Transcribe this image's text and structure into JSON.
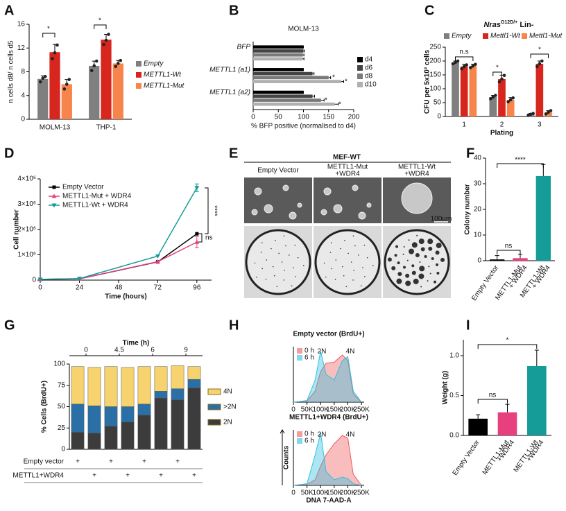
{
  "panel_letters": [
    "A",
    "B",
    "C",
    "D",
    "E",
    "F",
    "G",
    "H",
    "I"
  ],
  "image_panel": {
    "title": "MEF-WT",
    "columns": [
      [
        "Empty Vector"
      ],
      [
        "METTL1-Mut",
        "+WDR4"
      ],
      [
        "METTL1-Wt",
        "+WDR4"
      ]
    ],
    "scale_bar": "100µm"
  },
  "chart_data": [
    {
      "type": "bar",
      "categories": [
        "MOLM-13",
        "THP-1"
      ],
      "ylabel": "n cells d8/ n cells d5",
      "ylim": [
        0,
        16
      ],
      "yticks": [
        0,
        4,
        8,
        12,
        16
      ],
      "legend": "right",
      "series": [
        {
          "name": "Empty",
          "color": "#7f7f7f",
          "values": [
            6.8,
            9.0
          ],
          "errors": [
            0.5,
            0.8
          ],
          "points": [
            [
              6.3,
              6.9,
              7.2
            ],
            [
              8.2,
              9.0,
              9.8
            ]
          ]
        },
        {
          "name": "METTL1-Wt",
          "color": "#d7261e",
          "values": [
            11.3,
            13.4
          ],
          "errors": [
            1.3,
            0.9
          ],
          "points": [
            [
              10.2,
              11.2,
              12.5
            ],
            [
              12.6,
              13.3,
              14.3
            ]
          ]
        },
        {
          "name": "METTL1-Mut",
          "color": "#f7844a",
          "values": [
            5.9,
            9.4
          ],
          "errors": [
            0.8,
            0.5
          ],
          "points": [
            [
              5.1,
              5.9,
              6.7
            ],
            [
              8.9,
              9.4,
              9.9
            ]
          ]
        }
      ],
      "annotations": [
        "*",
        "*"
      ]
    },
    {
      "type": "hbar",
      "title": "MOLM-13",
      "categories": [
        "BFP",
        "METTL1 (a1)",
        "METTL1 (a2)"
      ],
      "xlabel": "% BFP positive (normalised to d4)",
      "xlim": [
        0,
        200
      ],
      "xticks": [
        0,
        50,
        100,
        150,
        200
      ],
      "legend": "right",
      "series": [
        {
          "name": "d4",
          "color": "#000000",
          "values": [
            100,
            100,
            100
          ],
          "errors": [
            0,
            0,
            0
          ]
        },
        {
          "name": "d6",
          "color": "#444444",
          "values": [
            100,
            118,
            118
          ],
          "errors": [
            2,
            3,
            4
          ]
        },
        {
          "name": "d8",
          "color": "#7a7a7a",
          "values": [
            99,
            150,
            135
          ],
          "errors": [
            2,
            4,
            6
          ]
        },
        {
          "name": "d10",
          "color": "#b0b0b0",
          "values": [
            98,
            175,
            162
          ],
          "errors": [
            3,
            5,
            7
          ]
        }
      ],
      "annotations": [
        "*",
        "*",
        "*",
        "*"
      ],
      "annotation_color": "#e0322a"
    },
    {
      "type": "bar",
      "title_parts": [
        "Nras",
        "G12D/+",
        " Lin-"
      ],
      "categories": [
        "1",
        "2",
        "3"
      ],
      "xlabel": "Plating",
      "ylabel": "CFU per 5x10³ cells",
      "ylim": [
        0,
        250
      ],
      "yticks": [
        0,
        50,
        100,
        150,
        200,
        250
      ],
      "legend": "top",
      "series": [
        {
          "name": "Empty",
          "color": "#7f7f7f",
          "values": [
            195,
            70,
            8
          ],
          "errors": [
            5,
            6,
            3
          ],
          "points": [
            [
              190,
              195,
              200
            ],
            [
              64,
              70,
              76
            ],
            [
              5,
              8,
              11
            ]
          ]
        },
        {
          "name": "Mettl1-Wt",
          "color": "#d7261e",
          "values": [
            180,
            135,
            190
          ],
          "errors": [
            8,
            14,
            10
          ],
          "points": [
            [
              172,
              180,
              186
            ],
            [
              125,
              135,
              148
            ],
            [
              180,
              190,
              200
            ]
          ]
        },
        {
          "name": "Mettl1-Mut",
          "color": "#f7844a",
          "values": [
            182,
            60,
            15
          ],
          "errors": [
            6,
            8,
            6
          ],
          "points": [
            [
              176,
              182,
              188
            ],
            [
              53,
              60,
              67
            ],
            [
              9,
              15,
              21
            ]
          ]
        }
      ],
      "annotations": [
        "n.s",
        "*",
        "*"
      ]
    },
    {
      "type": "line",
      "x": [
        0,
        24,
        72,
        96
      ],
      "xlabel": "Time (hours)",
      "ylabel": "Cell number",
      "xlim": [
        0,
        105
      ],
      "xticks": [
        0,
        24,
        48,
        72,
        96
      ],
      "ylim": [
        0,
        4000000
      ],
      "yticks": [
        0,
        {
          "value": 1000000,
          "label": "1×10⁶"
        },
        {
          "value": 2000000,
          "label": "2×10⁶"
        },
        {
          "value": 3000000,
          "label": "3×10⁶"
        },
        {
          "value": 4000000,
          "label": "4×10⁶"
        }
      ],
      "legend": "top-left",
      "series": [
        {
          "name": "Empty Vector",
          "color": "#000000",
          "marker": "square",
          "values": [
            30000,
            50000,
            720000,
            1830000
          ]
        },
        {
          "name": "METTL1-Mut + WDR4",
          "color": "#e8407f",
          "marker": "triangle",
          "values": [
            30000,
            50000,
            730000,
            1500000
          ],
          "errors": [
            null,
            null,
            null,
            220000
          ]
        },
        {
          "name": "METTL1-Wt + WDR4",
          "color": "#169c98",
          "marker": "triangle-down",
          "values": [
            30000,
            60000,
            950000,
            3650000
          ],
          "errors": [
            null,
            null,
            null,
            150000
          ]
        }
      ],
      "annotations": [
        "****",
        "ns"
      ]
    },
    {
      "type": "bar",
      "categories": [
        [
          "Empty Vector"
        ],
        [
          "METTL1-Mut",
          "+ WDR4"
        ],
        [
          "METTL1-Wt",
          "+ WDR4"
        ]
      ],
      "ylabel": "Colony number",
      "ylim": [
        0,
        40
      ],
      "yticks": [
        0,
        10,
        20,
        30,
        40
      ],
      "values": [
        0.5,
        1.0,
        33
      ],
      "errors": [
        1.5,
        1.5,
        4.5
      ],
      "colors": [
        "#000000",
        "#e8407f",
        "#169c98"
      ],
      "annotations": [
        "****",
        "ns"
      ]
    },
    {
      "type": "stacked",
      "time_label": "Time (h)",
      "time_ticks": [
        "0",
        "4.5",
        "6",
        "9"
      ],
      "ylabel": "% Cells (BrdU+)",
      "ylim": [
        0,
        100
      ],
      "yticks": [
        0,
        25,
        50,
        75,
        100
      ],
      "legend": "right",
      "series": [
        {
          "name": "2N",
          "color": "#3c3c3c",
          "values": [
            20,
            19,
            27,
            32,
            40,
            60,
            58,
            72
          ]
        },
        {
          "name": ">2N",
          "color": "#2a6fa6",
          "values": [
            33,
            32,
            23,
            18,
            13,
            8,
            13,
            10
          ]
        },
        {
          "name": "4N",
          "color": "#f6d36e",
          "values": [
            44,
            45,
            47,
            46,
            44,
            29,
            27,
            15
          ]
        }
      ],
      "rows": [
        {
          "label": "Empty vector",
          "marks": [
            "+",
            null,
            "+",
            null,
            "+",
            null,
            "+",
            null
          ]
        },
        {
          "label": "METTL1+WDR4",
          "marks": [
            null,
            "+",
            null,
            "+",
            null,
            "+",
            null,
            "+"
          ]
        }
      ]
    },
    {
      "type": "area",
      "title": "Empty vector (BrdU+)",
      "x": [
        0,
        50000,
        80000,
        100000,
        120000,
        150000,
        180000,
        200000,
        220000,
        250000
      ],
      "xlim": [
        0,
        260000
      ],
      "ylim": [
        0,
        100
      ],
      "xticks": [
        0,
        {
          "value": 50000,
          "label": "50K"
        },
        {
          "value": 100000,
          "label": "100K"
        },
        {
          "value": 150000,
          "label": "150K"
        },
        {
          "value": 200000,
          "label": "200K"
        },
        {
          "value": 250000,
          "label": "250K"
        }
      ],
      "legend": "top-left",
      "series": [
        {
          "name": "0 h",
          "color": "#f05a5a",
          "values": [
            0,
            2,
            20,
            55,
            70,
            72,
            85,
            75,
            15,
            0
          ]
        },
        {
          "name": "6 h",
          "color": "#2fc0e0",
          "values": [
            0,
            3,
            40,
            92,
            50,
            40,
            75,
            82,
            20,
            0
          ]
        }
      ],
      "annotations": [
        "2N",
        "4N"
      ]
    },
    {
      "type": "area",
      "title": "METTL1+WDR4 (BrdU+)",
      "xlabel": "DNA 7-AAD-A",
      "ylabel": "Counts",
      "x": [
        0,
        50000,
        80000,
        100000,
        120000,
        150000,
        180000,
        200000,
        220000,
        250000
      ],
      "xlim": [
        0,
        260000
      ],
      "ylim": [
        0,
        100
      ],
      "xticks": [
        0,
        {
          "value": 50000,
          "label": "50K"
        },
        {
          "value": 100000,
          "label": "100K"
        },
        {
          "value": 150000,
          "label": "150K"
        },
        {
          "value": 200000,
          "label": "200K"
        },
        {
          "value": 250000,
          "label": "250K"
        }
      ],
      "legend": "top-left",
      "series": [
        {
          "name": "0 h",
          "color": "#f05a5a",
          "values": [
            0,
            2,
            10,
            35,
            55,
            75,
            90,
            85,
            20,
            0
          ]
        },
        {
          "name": "6 h",
          "color": "#2fc0e0",
          "values": [
            0,
            3,
            55,
            95,
            25,
            10,
            15,
            12,
            3,
            0
          ]
        }
      ],
      "annotations": [
        "2N",
        "4N"
      ]
    },
    {
      "type": "bar",
      "categories": [
        [
          "Empty Vector"
        ],
        [
          "METTL1-Mut",
          "+WDR4"
        ],
        [
          "METTL1-Wt",
          "+WDR4"
        ]
      ],
      "ylabel": "Weight (g)",
      "ylim": [
        0,
        1.2
      ],
      "yticks": [
        {
          "value": 0,
          "label": "0.0"
        },
        {
          "value": 0.5,
          "label": "0.5"
        },
        {
          "value": 1,
          "label": "1.0"
        }
      ],
      "values": [
        0.21,
        0.29,
        0.87
      ],
      "errors": [
        0.05,
        0.1,
        0.2
      ],
      "colors": [
        "#000000",
        "#e8407f",
        "#169c98"
      ],
      "annotations": [
        "*",
        "ns"
      ]
    }
  ]
}
